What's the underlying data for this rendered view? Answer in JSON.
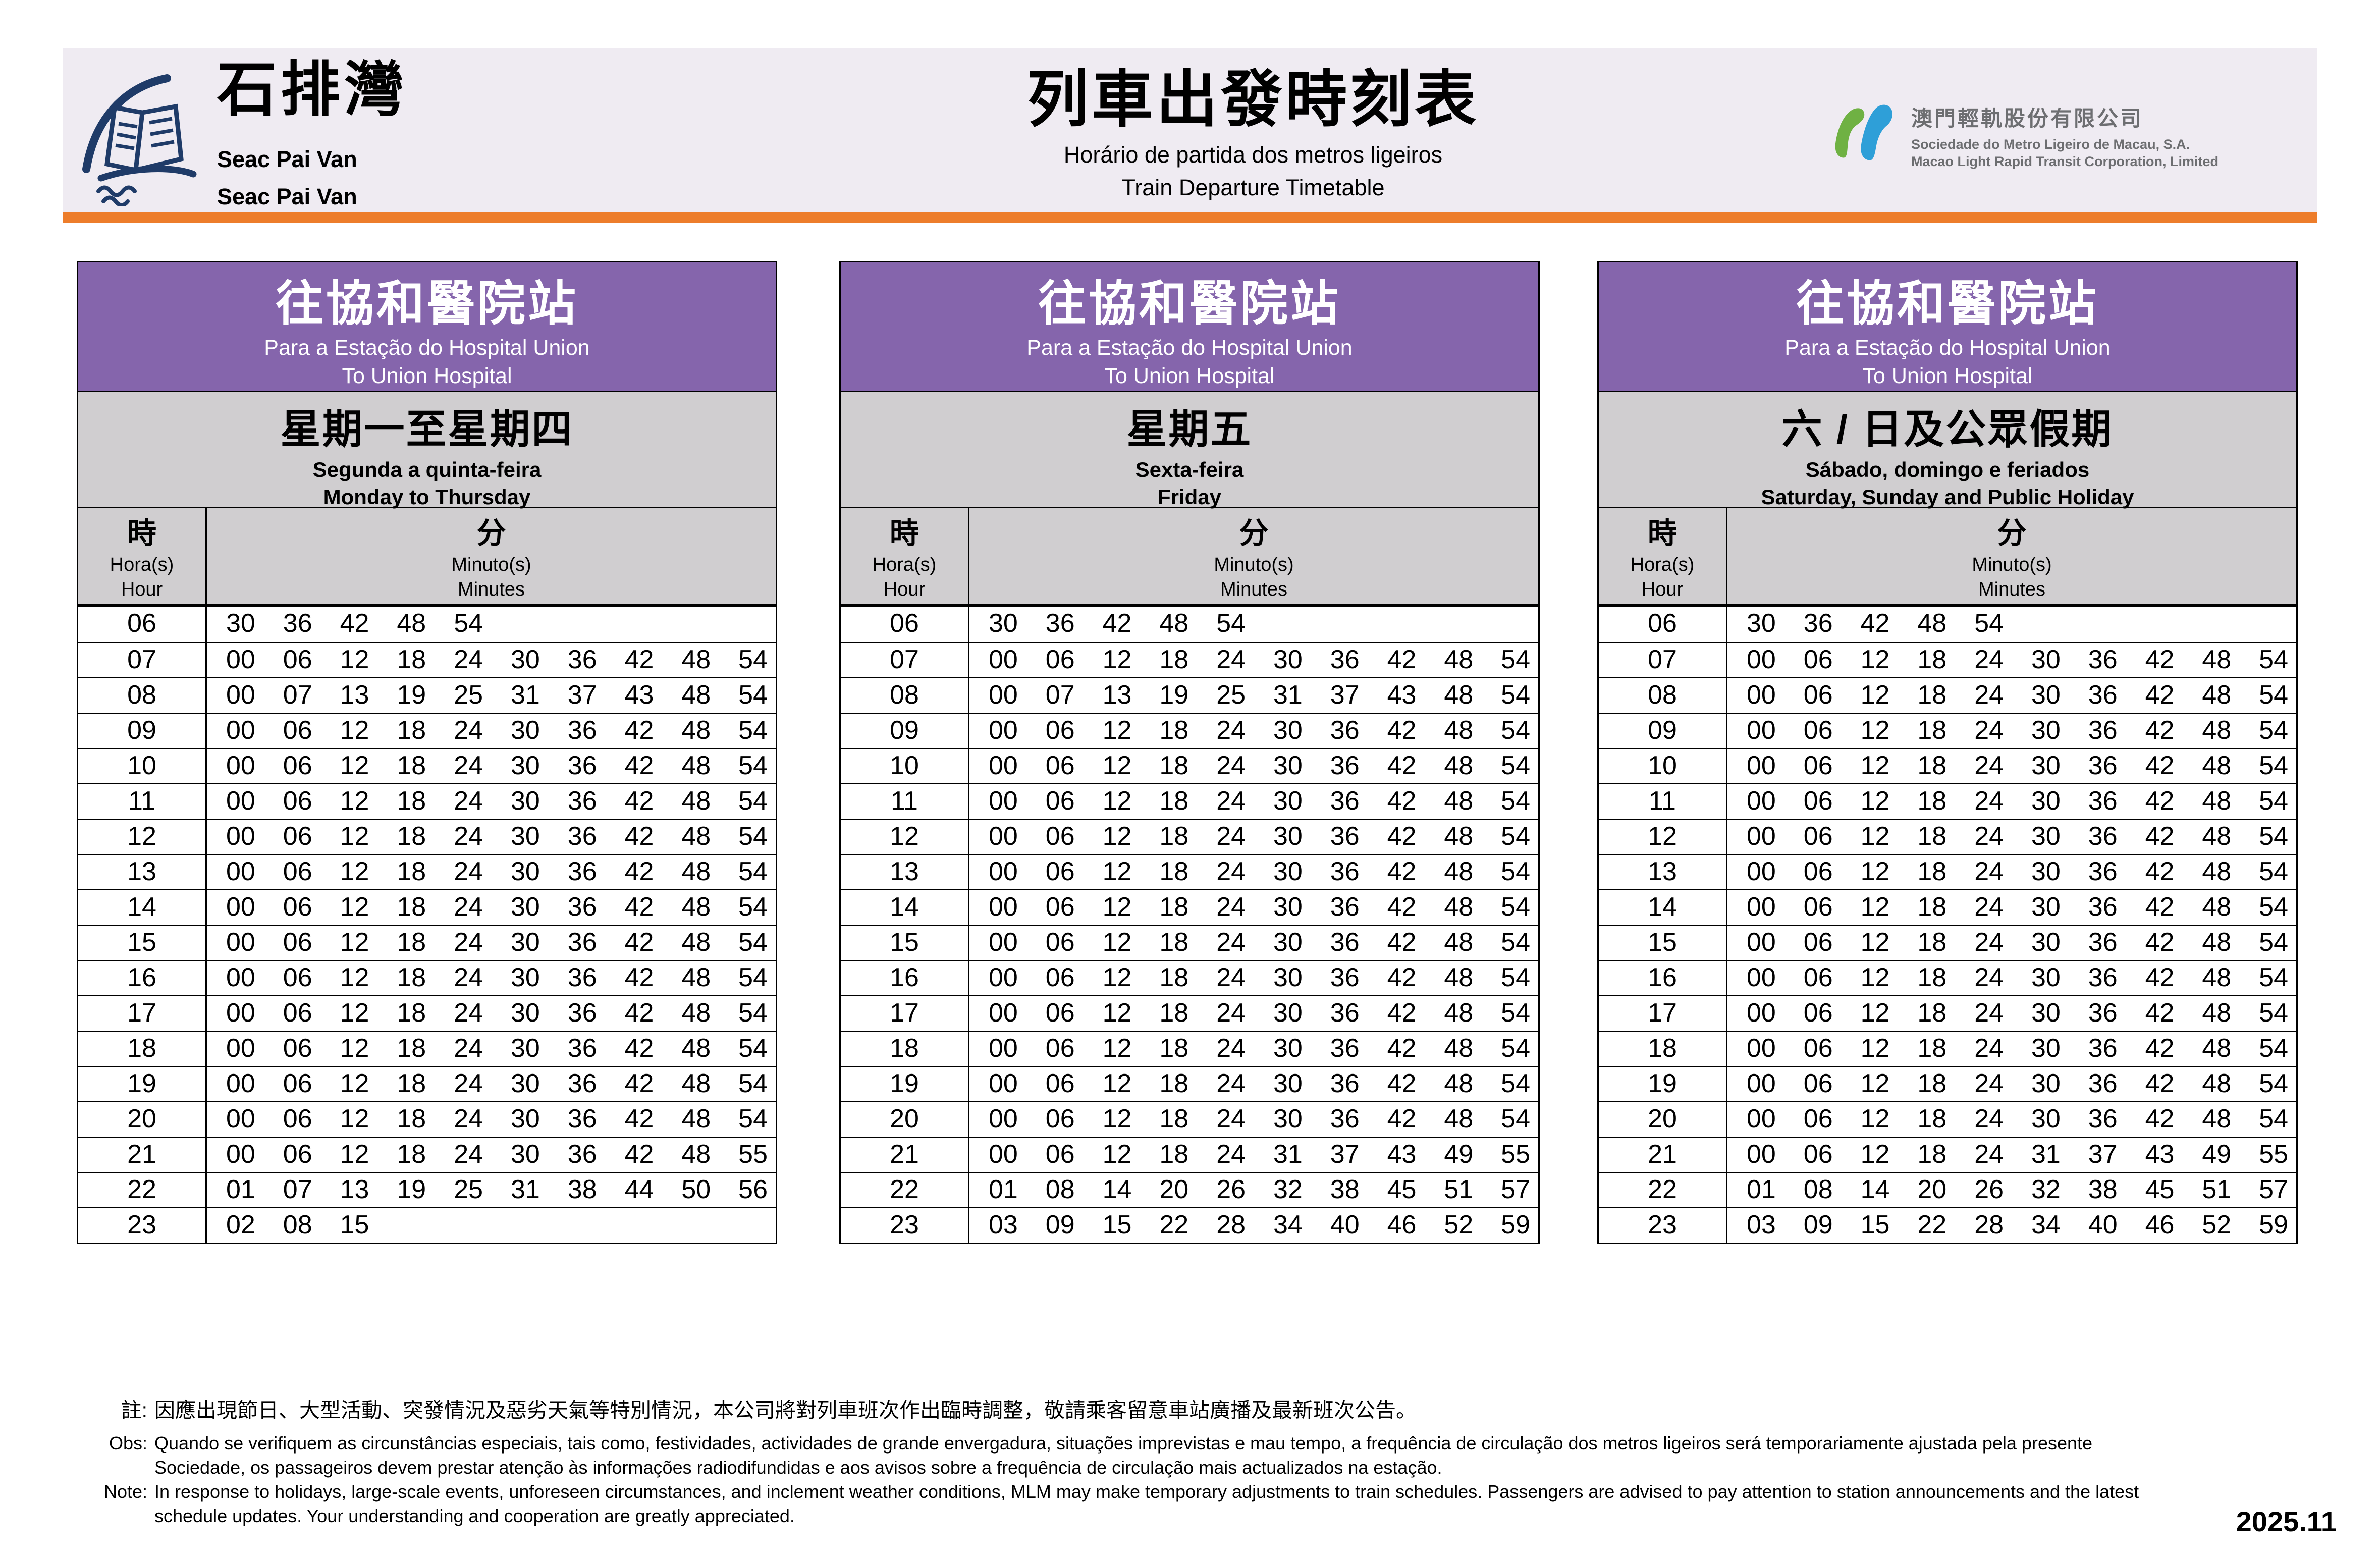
{
  "header": {
    "station": {
      "zh": "石排灣",
      "pt": "Seac Pai Van",
      "en": "Seac Pai Van"
    },
    "title": {
      "zh": "列車出發時刻表",
      "pt": "Horário de partida dos metros ligeiros",
      "en": "Train Departure Timetable"
    },
    "company": {
      "zh": "澳門輕軌股份有限公司",
      "pt": "Sociedade do Metro Ligeiro de Macau, S.A.",
      "en": "Macao Light Rapid Transit Corporation, Limited"
    }
  },
  "destination": {
    "zh": "往協和醫院站",
    "pt": "Para a Estação do Hospital Union",
    "en": "To Union Hospital"
  },
  "col_headers": {
    "hour_zh": "時",
    "hour_pt": "Hora(s)",
    "hour_en": "Hour",
    "min_zh": "分",
    "min_pt": "Minuto(s)",
    "min_en": "Minutes"
  },
  "tables": [
    {
      "day": {
        "zh": "星期一至星期四",
        "pt": "Segunda a quinta-feira",
        "en": "Monday to Thursday"
      },
      "rows": [
        {
          "hour": "06",
          "minutes": [
            "30",
            "36",
            "42",
            "48",
            "54"
          ]
        },
        {
          "hour": "07",
          "minutes": [
            "00",
            "06",
            "12",
            "18",
            "24",
            "30",
            "36",
            "42",
            "48",
            "54"
          ]
        },
        {
          "hour": "08",
          "minutes": [
            "00",
            "07",
            "13",
            "19",
            "25",
            "31",
            "37",
            "43",
            "48",
            "54"
          ]
        },
        {
          "hour": "09",
          "minutes": [
            "00",
            "06",
            "12",
            "18",
            "24",
            "30",
            "36",
            "42",
            "48",
            "54"
          ]
        },
        {
          "hour": "10",
          "minutes": [
            "00",
            "06",
            "12",
            "18",
            "24",
            "30",
            "36",
            "42",
            "48",
            "54"
          ]
        },
        {
          "hour": "11",
          "minutes": [
            "00",
            "06",
            "12",
            "18",
            "24",
            "30",
            "36",
            "42",
            "48",
            "54"
          ]
        },
        {
          "hour": "12",
          "minutes": [
            "00",
            "06",
            "12",
            "18",
            "24",
            "30",
            "36",
            "42",
            "48",
            "54"
          ]
        },
        {
          "hour": "13",
          "minutes": [
            "00",
            "06",
            "12",
            "18",
            "24",
            "30",
            "36",
            "42",
            "48",
            "54"
          ]
        },
        {
          "hour": "14",
          "minutes": [
            "00",
            "06",
            "12",
            "18",
            "24",
            "30",
            "36",
            "42",
            "48",
            "54"
          ]
        },
        {
          "hour": "15",
          "minutes": [
            "00",
            "06",
            "12",
            "18",
            "24",
            "30",
            "36",
            "42",
            "48",
            "54"
          ]
        },
        {
          "hour": "16",
          "minutes": [
            "00",
            "06",
            "12",
            "18",
            "24",
            "30",
            "36",
            "42",
            "48",
            "54"
          ]
        },
        {
          "hour": "17",
          "minutes": [
            "00",
            "06",
            "12",
            "18",
            "24",
            "30",
            "36",
            "42",
            "48",
            "54"
          ]
        },
        {
          "hour": "18",
          "minutes": [
            "00",
            "06",
            "12",
            "18",
            "24",
            "30",
            "36",
            "42",
            "48",
            "54"
          ]
        },
        {
          "hour": "19",
          "minutes": [
            "00",
            "06",
            "12",
            "18",
            "24",
            "30",
            "36",
            "42",
            "48",
            "54"
          ]
        },
        {
          "hour": "20",
          "minutes": [
            "00",
            "06",
            "12",
            "18",
            "24",
            "30",
            "36",
            "42",
            "48",
            "54"
          ]
        },
        {
          "hour": "21",
          "minutes": [
            "00",
            "06",
            "12",
            "18",
            "24",
            "30",
            "36",
            "42",
            "48",
            "55"
          ]
        },
        {
          "hour": "22",
          "minutes": [
            "01",
            "07",
            "13",
            "19",
            "25",
            "31",
            "38",
            "44",
            "50",
            "56"
          ]
        },
        {
          "hour": "23",
          "minutes": [
            "02",
            "08",
            "15"
          ]
        }
      ]
    },
    {
      "day": {
        "zh": "星期五",
        "pt": "Sexta-feira",
        "en": "Friday"
      },
      "rows": [
        {
          "hour": "06",
          "minutes": [
            "30",
            "36",
            "42",
            "48",
            "54"
          ]
        },
        {
          "hour": "07",
          "minutes": [
            "00",
            "06",
            "12",
            "18",
            "24",
            "30",
            "36",
            "42",
            "48",
            "54"
          ]
        },
        {
          "hour": "08",
          "minutes": [
            "00",
            "07",
            "13",
            "19",
            "25",
            "31",
            "37",
            "43",
            "48",
            "54"
          ]
        },
        {
          "hour": "09",
          "minutes": [
            "00",
            "06",
            "12",
            "18",
            "24",
            "30",
            "36",
            "42",
            "48",
            "54"
          ]
        },
        {
          "hour": "10",
          "minutes": [
            "00",
            "06",
            "12",
            "18",
            "24",
            "30",
            "36",
            "42",
            "48",
            "54"
          ]
        },
        {
          "hour": "11",
          "minutes": [
            "00",
            "06",
            "12",
            "18",
            "24",
            "30",
            "36",
            "42",
            "48",
            "54"
          ]
        },
        {
          "hour": "12",
          "minutes": [
            "00",
            "06",
            "12",
            "18",
            "24",
            "30",
            "36",
            "42",
            "48",
            "54"
          ]
        },
        {
          "hour": "13",
          "minutes": [
            "00",
            "06",
            "12",
            "18",
            "24",
            "30",
            "36",
            "42",
            "48",
            "54"
          ]
        },
        {
          "hour": "14",
          "minutes": [
            "00",
            "06",
            "12",
            "18",
            "24",
            "30",
            "36",
            "42",
            "48",
            "54"
          ]
        },
        {
          "hour": "15",
          "minutes": [
            "00",
            "06",
            "12",
            "18",
            "24",
            "30",
            "36",
            "42",
            "48",
            "54"
          ]
        },
        {
          "hour": "16",
          "minutes": [
            "00",
            "06",
            "12",
            "18",
            "24",
            "30",
            "36",
            "42",
            "48",
            "54"
          ]
        },
        {
          "hour": "17",
          "minutes": [
            "00",
            "06",
            "12",
            "18",
            "24",
            "30",
            "36",
            "42",
            "48",
            "54"
          ]
        },
        {
          "hour": "18",
          "minutes": [
            "00",
            "06",
            "12",
            "18",
            "24",
            "30",
            "36",
            "42",
            "48",
            "54"
          ]
        },
        {
          "hour": "19",
          "minutes": [
            "00",
            "06",
            "12",
            "18",
            "24",
            "30",
            "36",
            "42",
            "48",
            "54"
          ]
        },
        {
          "hour": "20",
          "minutes": [
            "00",
            "06",
            "12",
            "18",
            "24",
            "30",
            "36",
            "42",
            "48",
            "54"
          ]
        },
        {
          "hour": "21",
          "minutes": [
            "00",
            "06",
            "12",
            "18",
            "24",
            "31",
            "37",
            "43",
            "49",
            "55"
          ]
        },
        {
          "hour": "22",
          "minutes": [
            "01",
            "08",
            "14",
            "20",
            "26",
            "32",
            "38",
            "45",
            "51",
            "57"
          ]
        },
        {
          "hour": "23",
          "minutes": [
            "03",
            "09",
            "15",
            "22",
            "28",
            "34",
            "40",
            "46",
            "52",
            "59"
          ]
        }
      ]
    },
    {
      "day": {
        "zh": "六 / 日及公眾假期",
        "pt": "Sábado, domingo e feriados",
        "en": "Saturday, Sunday and Public Holiday"
      },
      "rows": [
        {
          "hour": "06",
          "minutes": [
            "30",
            "36",
            "42",
            "48",
            "54"
          ]
        },
        {
          "hour": "07",
          "minutes": [
            "00",
            "06",
            "12",
            "18",
            "24",
            "30",
            "36",
            "42",
            "48",
            "54"
          ]
        },
        {
          "hour": "08",
          "minutes": [
            "00",
            "06",
            "12",
            "18",
            "24",
            "30",
            "36",
            "42",
            "48",
            "54"
          ]
        },
        {
          "hour": "09",
          "minutes": [
            "00",
            "06",
            "12",
            "18",
            "24",
            "30",
            "36",
            "42",
            "48",
            "54"
          ]
        },
        {
          "hour": "10",
          "minutes": [
            "00",
            "06",
            "12",
            "18",
            "24",
            "30",
            "36",
            "42",
            "48",
            "54"
          ]
        },
        {
          "hour": "11",
          "minutes": [
            "00",
            "06",
            "12",
            "18",
            "24",
            "30",
            "36",
            "42",
            "48",
            "54"
          ]
        },
        {
          "hour": "12",
          "minutes": [
            "00",
            "06",
            "12",
            "18",
            "24",
            "30",
            "36",
            "42",
            "48",
            "54"
          ]
        },
        {
          "hour": "13",
          "minutes": [
            "00",
            "06",
            "12",
            "18",
            "24",
            "30",
            "36",
            "42",
            "48",
            "54"
          ]
        },
        {
          "hour": "14",
          "minutes": [
            "00",
            "06",
            "12",
            "18",
            "24",
            "30",
            "36",
            "42",
            "48",
            "54"
          ]
        },
        {
          "hour": "15",
          "minutes": [
            "00",
            "06",
            "12",
            "18",
            "24",
            "30",
            "36",
            "42",
            "48",
            "54"
          ]
        },
        {
          "hour": "16",
          "minutes": [
            "00",
            "06",
            "12",
            "18",
            "24",
            "30",
            "36",
            "42",
            "48",
            "54"
          ]
        },
        {
          "hour": "17",
          "minutes": [
            "00",
            "06",
            "12",
            "18",
            "24",
            "30",
            "36",
            "42",
            "48",
            "54"
          ]
        },
        {
          "hour": "18",
          "minutes": [
            "00",
            "06",
            "12",
            "18",
            "24",
            "30",
            "36",
            "42",
            "48",
            "54"
          ]
        },
        {
          "hour": "19",
          "minutes": [
            "00",
            "06",
            "12",
            "18",
            "24",
            "30",
            "36",
            "42",
            "48",
            "54"
          ]
        },
        {
          "hour": "20",
          "minutes": [
            "00",
            "06",
            "12",
            "18",
            "24",
            "30",
            "36",
            "42",
            "48",
            "54"
          ]
        },
        {
          "hour": "21",
          "minutes": [
            "00",
            "06",
            "12",
            "18",
            "24",
            "31",
            "37",
            "43",
            "49",
            "55"
          ]
        },
        {
          "hour": "22",
          "minutes": [
            "01",
            "08",
            "14",
            "20",
            "26",
            "32",
            "38",
            "45",
            "51",
            "57"
          ]
        },
        {
          "hour": "23",
          "minutes": [
            "03",
            "09",
            "15",
            "22",
            "28",
            "34",
            "40",
            "46",
            "52",
            "59"
          ]
        }
      ]
    }
  ],
  "notes": {
    "zh": {
      "label": "註:",
      "lines": [
        "因應出現節日、大型活動、突發情況及惡劣天氣等特別情況，本公司將對列車班次作出臨時調整，敬請乘客留意車站廣播及最新班次公告。"
      ]
    },
    "pt": {
      "label": "Obs:",
      "lines": [
        "Quando se verifiquem as circunstâncias especiais, tais como, festividades, actividades de grande envergadura, situações imprevistas e mau tempo, a frequência de circulação dos metros ligeiros será temporariamente ajustada pela presente",
        "Sociedade, os passageiros devem prestar atenção às informações radiodifundidas e aos avisos sobre a frequência de circulação mais actualizados na estação."
      ]
    },
    "en": {
      "label": "Note:",
      "lines": [
        "In response to holidays, large-scale events, unforeseen circumstances, and inclement weather conditions, MLM may make temporary adjustments to train schedules. Passengers are advised to pay attention to station announcements and the latest",
        "schedule updates. Your understanding and cooperation are greatly appreciated."
      ]
    }
  },
  "version": "2025.11",
  "colors": {
    "header_band": "#EFEBF2",
    "orange_rule": "#ED7D2B",
    "destination_purple": "#8565AC",
    "subheader_gray": "#D0CED0",
    "station_logo_navy": "#1F3B68",
    "mlm_green": "#6FB143",
    "mlm_blue": "#2E9FD8",
    "company_text_gray": "#6D6E71"
  }
}
